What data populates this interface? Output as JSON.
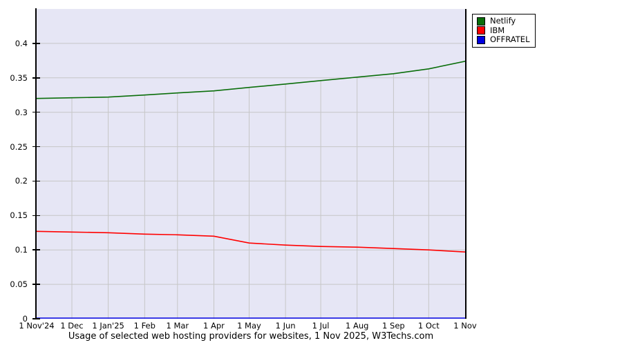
{
  "caption": "Usage of selected web hosting providers for websites, 1 Nov 2025, W3Techs.com",
  "colors": {
    "plot_background": "#e6e6f5",
    "grid": "#c6c6c6",
    "axis": "#000000",
    "netlify_green": "#0a6e0a",
    "ibm_red": "#ff0000",
    "offratel_blue": "#0000e0"
  },
  "legend": {
    "position": "top-right-outside"
  },
  "chart_data": {
    "type": "line",
    "title": "Usage of selected web hosting providers for websites, 1 Nov 2025, W3Techs.com",
    "xlabel": "",
    "ylabel": "",
    "categories": [
      "1 Nov'24",
      "1 Dec",
      "1 Jan'25",
      "1 Feb",
      "1 Mar",
      "1 Apr",
      "1 May",
      "1 Jun",
      "1 Jul",
      "1 Aug",
      "1 Sep",
      "1 Oct",
      "1 Nov"
    ],
    "day_offsets": [
      0,
      30,
      61,
      92,
      120,
      151,
      181,
      212,
      242,
      273,
      304,
      334,
      365
    ],
    "series": [
      {
        "name": "Netlify",
        "color": "#0a6e0a",
        "values": [
          0.32,
          0.321,
          0.322,
          0.325,
          0.328,
          0.331,
          0.336,
          0.341,
          0.346,
          0.351,
          0.356,
          0.363,
          0.374
        ]
      },
      {
        "name": "IBM",
        "color": "#ff0000",
        "values": [
          0.127,
          0.126,
          0.125,
          0.123,
          0.122,
          0.12,
          0.11,
          0.107,
          0.105,
          0.104,
          0.102,
          0.1,
          0.097
        ]
      },
      {
        "name": "OFFRATEL",
        "color": "#0000e0",
        "values": [
          0,
          0,
          0,
          0,
          0,
          0,
          0,
          0,
          0,
          0,
          0,
          0,
          0
        ]
      }
    ],
    "ylim": [
      0,
      0.45
    ],
    "y_ticks": [
      0,
      0.05,
      0.1,
      0.15,
      0.2,
      0.25,
      0.3,
      0.35,
      0.4
    ],
    "y_tick_labels": [
      "0",
      "0.05",
      "0.1",
      "0.15",
      "0.2",
      "0.25",
      "0.3",
      "0.35",
      "0.4"
    ],
    "grid": true,
    "legend_position": "top-right-outside"
  }
}
